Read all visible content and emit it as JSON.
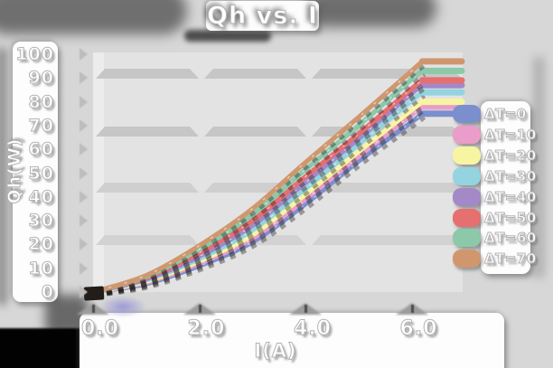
{
  "title": "Qh vs. I",
  "y_axis": {
    "label": "Qh(W)",
    "ticks": [
      "100",
      "90",
      "80",
      "70",
      "60",
      "50",
      "40",
      "30",
      "20",
      "10",
      "0"
    ]
  },
  "x_axis": {
    "label": "I(A)",
    "ticks": [
      "0.0",
      "2.0",
      "4.0",
      "6.0"
    ]
  },
  "legend": {
    "items": [
      {
        "label": "ΔT=0",
        "color": "#7b8fce"
      },
      {
        "label": "ΔT=10",
        "color": "#e99dc8"
      },
      {
        "label": "ΔT=20",
        "color": "#f8f5a2"
      },
      {
        "label": "ΔT=30",
        "color": "#93d4e0"
      },
      {
        "label": "ΔT=40",
        "color": "#a389c7"
      },
      {
        "label": "ΔT=50",
        "color": "#e66f6f"
      },
      {
        "label": "ΔT=60",
        "color": "#8bc9a9"
      },
      {
        "label": "ΔT=70",
        "color": "#d0976e"
      }
    ]
  },
  "chart_data": {
    "type": "line",
    "title": "Qh vs. I",
    "xlabel": "I(A)",
    "ylabel": "Qh(W)",
    "xlim": [
      0,
      6.95
    ],
    "ylim": [
      0,
      100
    ],
    "x_ticks": [
      0,
      2,
      4,
      6
    ],
    "y_ticks": [
      0,
      10,
      20,
      30,
      40,
      50,
      60,
      70,
      80,
      90,
      100
    ],
    "grid": "horizontal-bands",
    "legend_position": "right",
    "x": [
      0,
      1,
      2,
      3,
      4,
      5,
      6,
      6.2
    ],
    "series": [
      {
        "name": "ΔT=0",
        "color": "#7b8fce",
        "values": [
          0,
          3.5,
          11,
          21,
          37,
          55,
          71.5,
          75
        ]
      },
      {
        "name": "ΔT=10",
        "color": "#e99dc8",
        "values": [
          0,
          4,
          12,
          22.5,
          39,
          57,
          74.5,
          78
        ]
      },
      {
        "name": "ΔT=20",
        "color": "#f8f5a2",
        "values": [
          0,
          4.5,
          13,
          24,
          41,
          59,
          76.5,
          80
        ]
      },
      {
        "name": "ΔT=30",
        "color": "#93d4e0",
        "values": [
          0,
          5,
          14,
          26,
          43.5,
          62,
          80.5,
          84
        ]
      },
      {
        "name": "ΔT=40",
        "color": "#a389c7",
        "values": [
          0,
          5.5,
          15,
          28,
          46,
          64.5,
          83.5,
          87
        ]
      },
      {
        "name": "ΔT=50",
        "color": "#e66f6f",
        "values": [
          0,
          6,
          16.5,
          30,
          48.5,
          66.5,
          85.5,
          89
        ]
      },
      {
        "name": "ΔT=60",
        "color": "#8bc9a9",
        "values": [
          0,
          6.5,
          18,
          32.5,
          51.5,
          70,
          89.5,
          93
        ]
      },
      {
        "name": "ΔT=70",
        "color": "#d0976e",
        "values": [
          0,
          7,
          19.5,
          35,
          54.5,
          73.5,
          93,
          97
        ]
      }
    ]
  }
}
